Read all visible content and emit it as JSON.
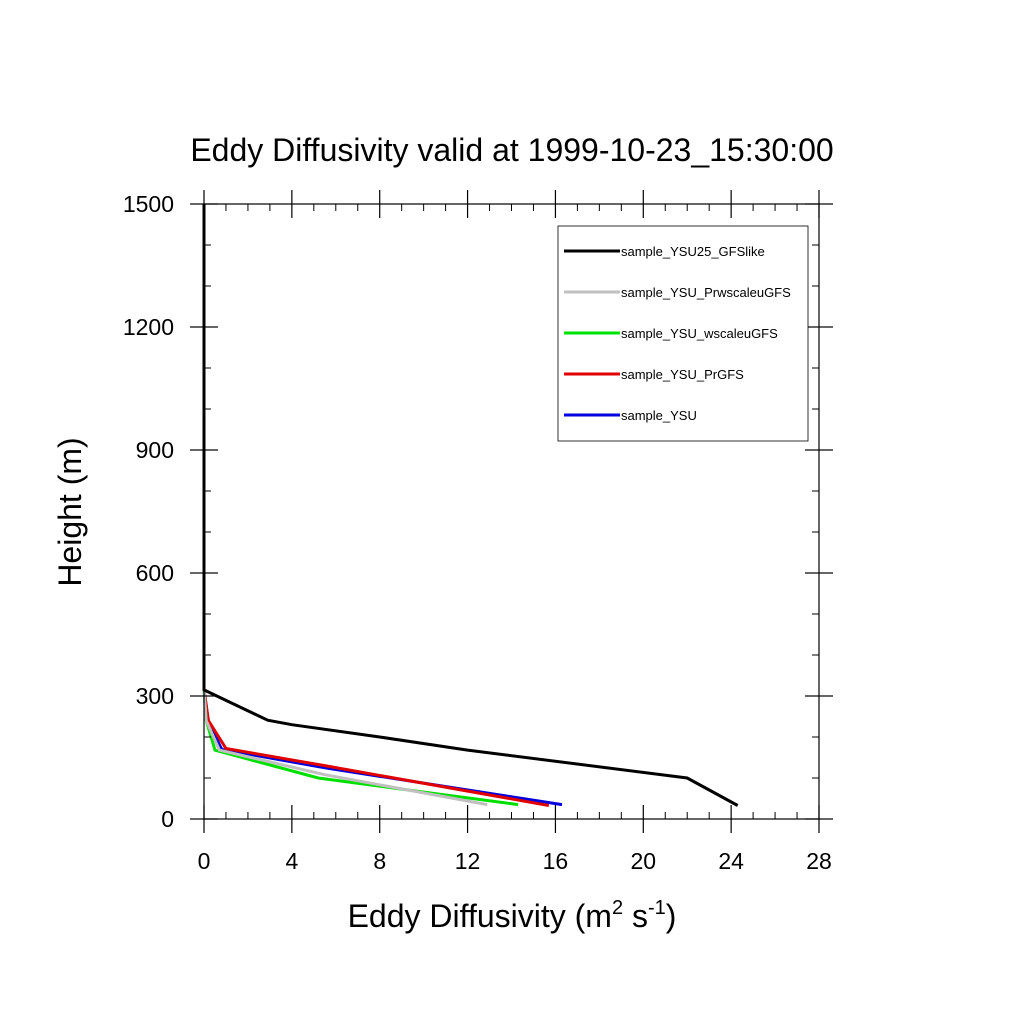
{
  "chart_data": {
    "type": "line",
    "title": "Eddy Diffusivity valid at 1999-10-23_15:30:00",
    "xlabel": {
      "base": "Eddy Diffusivity (m",
      "sup1": "2",
      "mid": " s",
      "sup2": "-1",
      "end": ")"
    },
    "ylabel": "Height (m)",
    "xlim": [
      0,
      28
    ],
    "ylim": [
      0,
      1500
    ],
    "xticks": [
      "0",
      "4",
      "8",
      "12",
      "16",
      "20",
      "24",
      "28"
    ],
    "yticks": [
      "0",
      "300",
      "600",
      "900",
      "1200",
      "1500"
    ],
    "legend_position": "top-right",
    "series": [
      {
        "name": "sample_YSU25_GFSlike",
        "color": "#000000",
        "points": [
          [
            24.3,
            33
          ],
          [
            22.0,
            100
          ],
          [
            12.0,
            168
          ],
          [
            8.0,
            200
          ],
          [
            4.0,
            230
          ],
          [
            2.9,
            241
          ],
          [
            0.0,
            315
          ],
          [
            0.0,
            1500
          ]
        ]
      },
      {
        "name": "sample_YSU_PrwscaleuGFS",
        "color": "#c0c0c0",
        "points": [
          [
            12.9,
            35
          ],
          [
            5.5,
            108
          ],
          [
            0.7,
            168
          ],
          [
            0.1,
            240
          ],
          [
            0.0,
            315
          ],
          [
            0.0,
            1500
          ]
        ]
      },
      {
        "name": "sample_YSU_wscaleuGFS",
        "color": "#00e000",
        "points": [
          [
            14.3,
            35
          ],
          [
            5.2,
            100
          ],
          [
            0.5,
            168
          ],
          [
            0.1,
            240
          ],
          [
            0.0,
            315
          ],
          [
            0.0,
            1500
          ]
        ]
      },
      {
        "name": "sample_YSU_PrGFS",
        "color": "#e00000",
        "points": [
          [
            15.7,
            33
          ],
          [
            5.3,
            132
          ],
          [
            1.0,
            172
          ],
          [
            0.2,
            240
          ],
          [
            0.0,
            315
          ],
          [
            0.0,
            1500
          ]
        ]
      },
      {
        "name": "sample_YSU",
        "color": "#0000e0",
        "points": [
          [
            16.3,
            35
          ],
          [
            5.5,
            125
          ],
          [
            0.8,
            170
          ],
          [
            0.2,
            238
          ],
          [
            0.0,
            315
          ],
          [
            0.0,
            1500
          ]
        ]
      }
    ]
  }
}
